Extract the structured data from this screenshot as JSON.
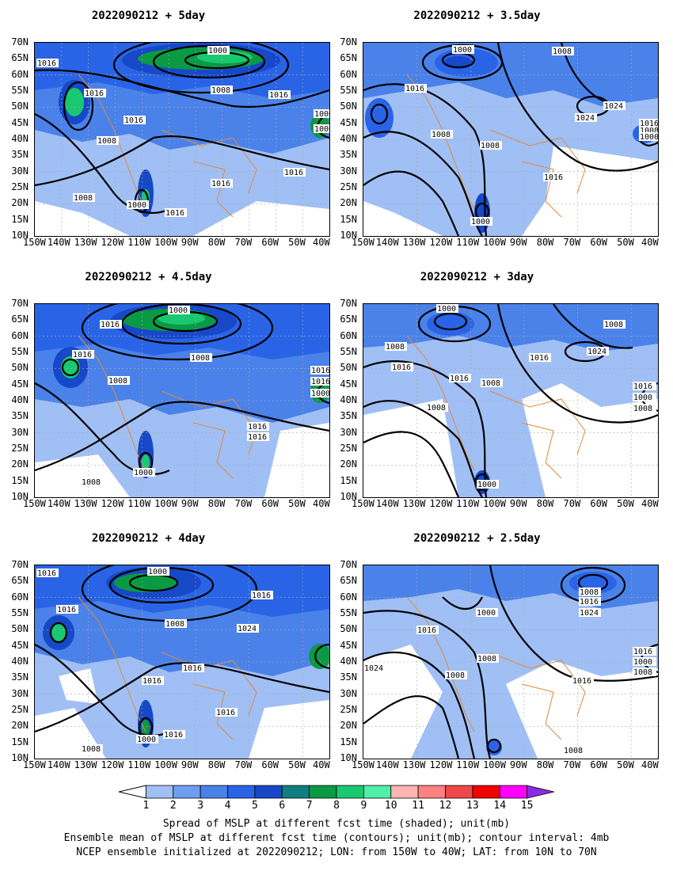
{
  "panels": [
    {
      "title": "2022090212  +  5day"
    },
    {
      "title": "2022090212  +  3.5day"
    },
    {
      "title": "2022090212  +  4.5day"
    },
    {
      "title": "2022090212  +  3day"
    },
    {
      "title": "2022090212  +  4day"
    },
    {
      "title": "2022090212  +  2.5day"
    }
  ],
  "axes": {
    "lat_labels": [
      "70N",
      "65N",
      "60N",
      "55N",
      "50N",
      "45N",
      "40N",
      "35N",
      "30N",
      "25N",
      "20N",
      "15N",
      "10N"
    ],
    "lon_labels": [
      "150W",
      "140W",
      "130W",
      "120W",
      "110W",
      "100W",
      "90W",
      "80W",
      "70W",
      "60W",
      "50W",
      "40W"
    ],
    "lat_range": [
      10,
      70
    ],
    "lon_range": [
      -150,
      -40
    ]
  },
  "contour_labels": {
    "p0": [
      "1016",
      "1016",
      "1000",
      "1008",
      "1016",
      "1016",
      "1008",
      "1008",
      "1016",
      "1000",
      "1016",
      "1016",
      "1000",
      "1000"
    ],
    "p1": [
      "1000",
      "1008",
      "1016",
      "1024",
      "1024",
      "1008",
      "1008",
      "1016",
      "1000",
      "1016",
      "1008",
      "1000"
    ],
    "p2": [
      "1016",
      "1016",
      "1000",
      "1008",
      "1008",
      "1016",
      "1016",
      "1000",
      "1008",
      "1016",
      "1000",
      "1016"
    ],
    "p3": [
      "1000",
      "1008",
      "1008",
      "1016",
      "1016",
      "1024",
      "1016",
      "1008",
      "1008",
      "1000",
      "1016",
      "1000",
      "1008"
    ],
    "p4": [
      "1016",
      "1000",
      "1016",
      "1016",
      "1008",
      "1024",
      "1016",
      "1016",
      "1016",
      "1000",
      "1016",
      "1008"
    ],
    "p5": [
      "1008",
      "1016",
      "1000",
      "1024",
      "1016",
      "1008",
      "1008",
      "1024",
      "1016",
      "1016",
      "1000",
      "1008",
      "1008"
    ]
  },
  "colorbar": {
    "ticks": [
      "1",
      "2",
      "3",
      "4",
      "5",
      "6",
      "7",
      "8",
      "9",
      "10",
      "11",
      "12",
      "13",
      "14",
      "15"
    ],
    "colors": [
      "#a0bff5",
      "#6f9ef0",
      "#4a82ea",
      "#2a64e6",
      "#1648c8",
      "#0f7f82",
      "#0a9a44",
      "#19c870",
      "#50f0a8",
      "#ffb4b4",
      "#ff8080",
      "#f04848",
      "#f00000",
      "#ff00ff",
      "#8a2be2"
    ]
  },
  "caption": [
    "Spread of MSLP at different fcst time (shaded); unit(mb)",
    "Ensemble mean of MSLP at different fcst time (contours); unit(mb); contour interval: 4mb",
    "NCEP ensemble initialized at 2022090212; LON: from 150W to 40W; LAT: from 10N to 70N"
  ]
}
